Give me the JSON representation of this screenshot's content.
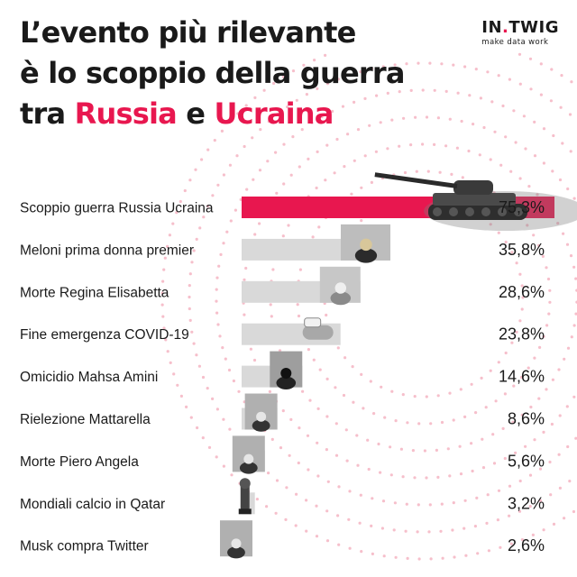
{
  "title": {
    "line1": "L’evento più rilevante",
    "line2": "è lo scoppio della guerra",
    "line3_pre": "tra ",
    "line3_hl1": "Russia",
    "line3_mid": " e ",
    "line3_hl2": "Ucraina"
  },
  "logo": {
    "brand_a": "IN",
    "brand_dot": ".",
    "brand_b": "TWIG",
    "tagline": "make data work"
  },
  "colors": {
    "accent": "#e8174f",
    "bar": "#d9d9d9",
    "text": "#1a1a1a",
    "dots": "#f3a9b9"
  },
  "chart_data": {
    "type": "bar",
    "orientation": "horizontal",
    "categories": [
      "Scoppio guerra Russia Ucraina",
      "Meloni prima donna premier",
      "Morte Regina Elisabetta",
      "Fine emergenza COVID-19",
      "Omicidio Mahsa Amini",
      "Rielezione Mattarella",
      "Morte Piero Angela",
      "Mondiali calcio in Qatar",
      "Musk compra Twitter"
    ],
    "values": [
      75.3,
      35.8,
      28.6,
      23.8,
      14.6,
      8.6,
      5.6,
      3.2,
      2.6
    ],
    "value_labels": [
      "75,3%",
      "35,8%",
      "28,6%",
      "23,8%",
      "14,6%",
      "8,6%",
      "5,6%",
      "3,2%",
      "2,6%"
    ],
    "highlight_index": 0,
    "xlim": [
      0,
      75.3
    ],
    "bar_images": [
      "tank",
      "person-portrait",
      "queen-portrait",
      "hand-with-mask",
      "woman-portrait",
      "man-portrait",
      "man-portrait",
      "world-cup-trophy",
      "man-portrait"
    ]
  }
}
